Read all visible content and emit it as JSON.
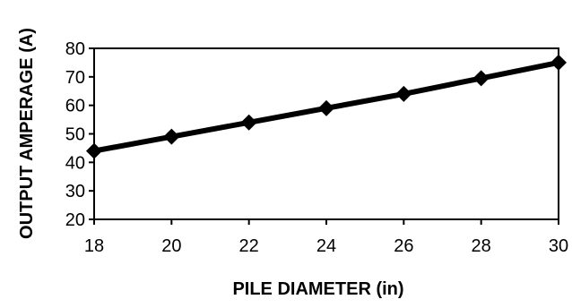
{
  "chart_data": {
    "type": "line",
    "title": "",
    "xlabel": "PILE DIAMETER (in)",
    "ylabel": "OUTPUT AMPERAGE (A)",
    "xlim": [
      18,
      30
    ],
    "ylim": [
      20,
      80
    ],
    "x_ticks": [
      18,
      20,
      22,
      24,
      26,
      28,
      30
    ],
    "y_ticks": [
      20,
      30,
      40,
      50,
      60,
      70,
      80
    ],
    "grid": false,
    "legend": "none",
    "series": [
      {
        "x": [
          18,
          20,
          22,
          24,
          26,
          28,
          30
        ],
        "values": [
          44,
          49,
          54,
          59,
          64,
          69.5,
          75
        ],
        "color": "#000000",
        "marker": "diamond"
      }
    ]
  }
}
